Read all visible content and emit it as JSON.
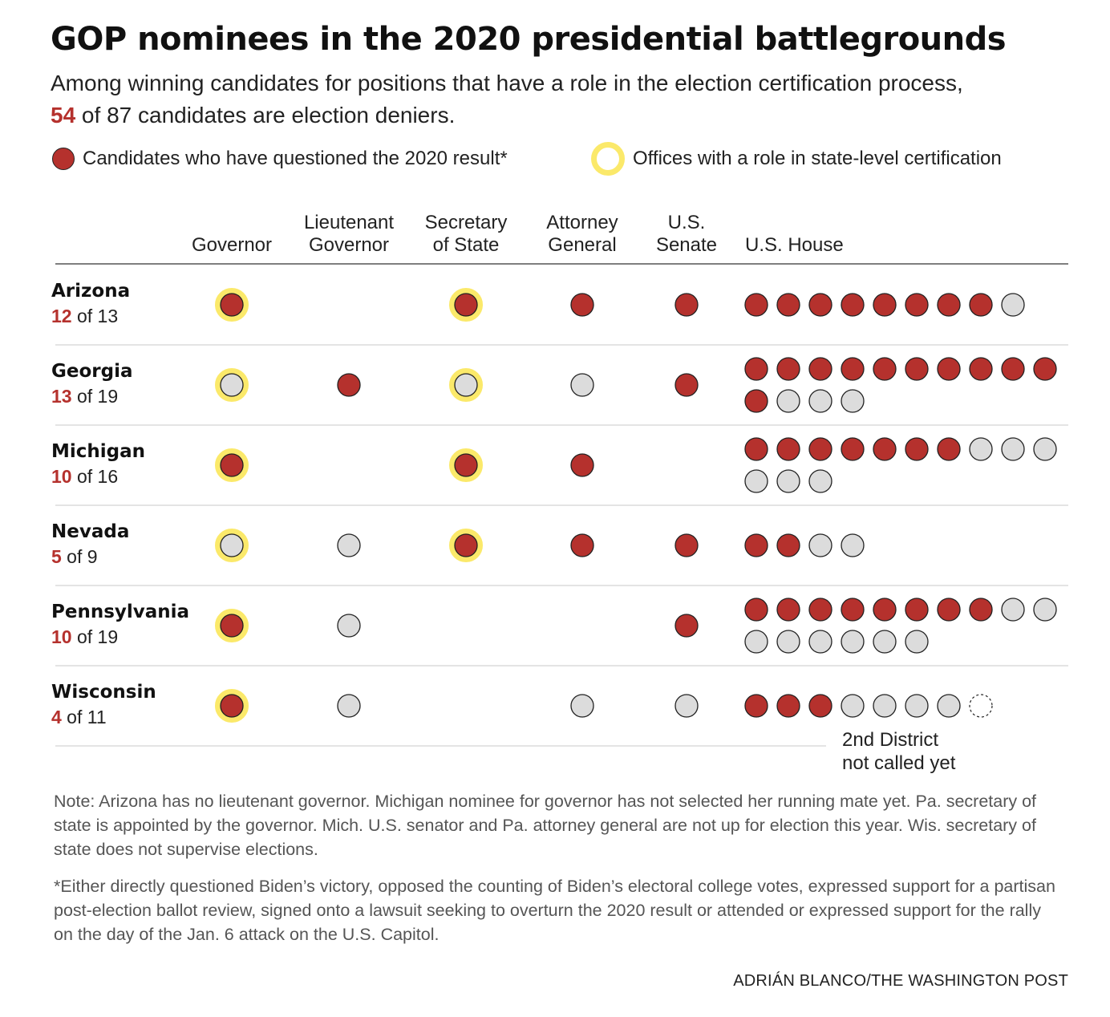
{
  "title": "GOP nominees in the 2020 presidential battlegrounds",
  "subtitle": {
    "line1": "Among winning candidates for positions that have a role in the election certification process,",
    "line2_number": "54",
    "line2_rest": " of 87 candidates are election deniers."
  },
  "legend": {
    "denier": "Candidates who have questioned the 2020 result*",
    "certification": "Offices with a role in state-level certification"
  },
  "colors": {
    "denier": "#b5312d",
    "non_denier": "#dcdcdc",
    "certification_ring": "#fbe96a",
    "stroke": "#222222",
    "rule": "#c8c8c8"
  },
  "chart_data": {
    "type": "table",
    "columns": [
      {
        "key": "governor",
        "label_lines": [
          "Governor"
        ]
      },
      {
        "key": "lt_governor",
        "label_lines": [
          "Lieutenant",
          "Governor"
        ]
      },
      {
        "key": "secretary_of_state",
        "label_lines": [
          "Secretary",
          "of State"
        ]
      },
      {
        "key": "attorney_general",
        "label_lines": [
          "Attorney",
          "General"
        ]
      },
      {
        "key": "us_senate",
        "label_lines": [
          "U.S.",
          "Senate"
        ]
      },
      {
        "key": "us_house",
        "label_lines": [
          "U.S. House"
        ]
      }
    ],
    "certification_offices": [
      "governor",
      "secretary_of_state"
    ],
    "rows": [
      {
        "state": "Arizona",
        "deniers": "12",
        "of_total": " of 13",
        "governor": "denier",
        "lt_governor": null,
        "secretary_of_state": "denier",
        "attorney_general": "denier",
        "us_senate": "denier",
        "us_house": [
          "denier",
          "denier",
          "denier",
          "denier",
          "denier",
          "denier",
          "denier",
          "denier",
          "non_denier"
        ]
      },
      {
        "state": "Georgia",
        "deniers": "13",
        "of_total": " of 19",
        "governor": "non_denier",
        "lt_governor": "denier",
        "secretary_of_state": "non_denier",
        "attorney_general": "non_denier",
        "us_senate": "denier",
        "us_house": [
          "denier",
          "denier",
          "denier",
          "denier",
          "denier",
          "denier",
          "denier",
          "denier",
          "denier",
          "denier",
          "denier",
          "non_denier",
          "non_denier",
          "non_denier"
        ]
      },
      {
        "state": "Michigan",
        "deniers": "10",
        "of_total": " of 16",
        "governor": "denier",
        "lt_governor": null,
        "secretary_of_state": "denier",
        "attorney_general": "denier",
        "us_senate": null,
        "us_house": [
          "denier",
          "denier",
          "denier",
          "denier",
          "denier",
          "denier",
          "denier",
          "non_denier",
          "non_denier",
          "non_denier",
          "non_denier",
          "non_denier",
          "non_denier"
        ]
      },
      {
        "state": "Nevada",
        "deniers": "5",
        "of_total": " of 9",
        "governor": "non_denier",
        "lt_governor": "non_denier",
        "secretary_of_state": "denier",
        "attorney_general": "denier",
        "us_senate": "denier",
        "us_house": [
          "denier",
          "denier",
          "non_denier",
          "non_denier"
        ]
      },
      {
        "state": "Pennsylvania",
        "deniers": "10",
        "of_total": " of 19",
        "governor": "denier",
        "lt_governor": "non_denier",
        "secretary_of_state": null,
        "attorney_general": null,
        "us_senate": "denier",
        "us_house": [
          "denier",
          "denier",
          "denier",
          "denier",
          "denier",
          "denier",
          "denier",
          "denier",
          "non_denier",
          "non_denier",
          "non_denier",
          "non_denier",
          "non_denier",
          "non_denier",
          "non_denier",
          "non_denier"
        ]
      },
      {
        "state": "Wisconsin",
        "deniers": "4",
        "of_total": " of 11",
        "governor": "denier",
        "lt_governor": "non_denier",
        "secretary_of_state": null,
        "attorney_general": "non_denier",
        "us_senate": "non_denier",
        "us_house": [
          "denier",
          "denier",
          "denier",
          "non_denier",
          "non_denier",
          "non_denier",
          "non_denier",
          "not_called"
        ]
      }
    ],
    "annotation": {
      "state": "Wisconsin",
      "lines": [
        "2nd District",
        "not called yet"
      ]
    }
  },
  "note": "Note: Arizona has no lieutenant governor. Michigan nominee for governor has not selected her running mate yet. Pa. secretary of state is appointed by the governor. Mich. U.S. senator and Pa. attorney general are not up for election this year. Wis. secretary of state does not supervise elections.",
  "footnote": "*Either directly questioned Biden’s victory, opposed the counting of Biden’s electoral college votes, expressed support for a partisan post-election ballot review, signed onto a lawsuit seeking to overturn the 2020 result or attended or expressed support for the rally on the day of the Jan. 6 attack on the U.S. Capitol.",
  "credit": "ADRIÁN BLANCO/THE WASHINGTON POST"
}
